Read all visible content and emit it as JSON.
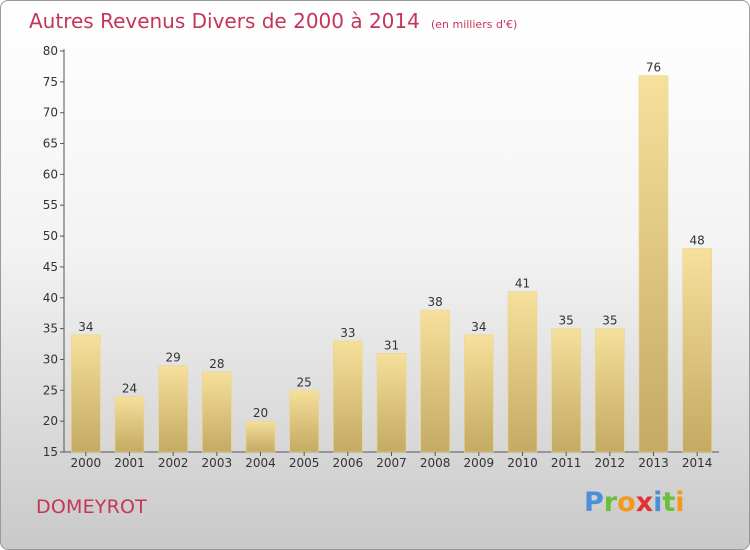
{
  "chart_data": {
    "type": "bar",
    "title": "Autres Revenus Divers de 2000 à 2014",
    "subtitle": "(en milliers d'€)",
    "xlabel": "",
    "ylabel": "",
    "categories": [
      "2000",
      "2001",
      "2002",
      "2003",
      "2004",
      "2005",
      "2006",
      "2007",
      "2008",
      "2009",
      "2010",
      "2011",
      "2012",
      "2013",
      "2014"
    ],
    "values": [
      34,
      24,
      29,
      28,
      20,
      25,
      33,
      31,
      38,
      34,
      41,
      35,
      35,
      76,
      48
    ],
    "ylim": [
      15,
      80
    ],
    "yticks": [
      15,
      20,
      25,
      30,
      35,
      40,
      45,
      50,
      55,
      60,
      65,
      70,
      75,
      80
    ],
    "grid": false,
    "legend": "none",
    "colors": {
      "bar_top": "#f6e09b",
      "bar_bottom": "#c4aa63",
      "title": "#c5355b",
      "axis": "#555555"
    }
  },
  "footer": {
    "location": "DOMEYROT",
    "brand_letters": [
      {
        "ch": "P",
        "color": "#4a8fd8"
      },
      {
        "ch": "r",
        "color": "#6cbf3c"
      },
      {
        "ch": "o",
        "color": "#f39a1e"
      },
      {
        "ch": "x",
        "color": "#e2312f"
      },
      {
        "ch": "i",
        "color": "#4a8fd8"
      },
      {
        "ch": "t",
        "color": "#6cbf3c"
      },
      {
        "ch": "i",
        "color": "#f39a1e"
      }
    ]
  }
}
